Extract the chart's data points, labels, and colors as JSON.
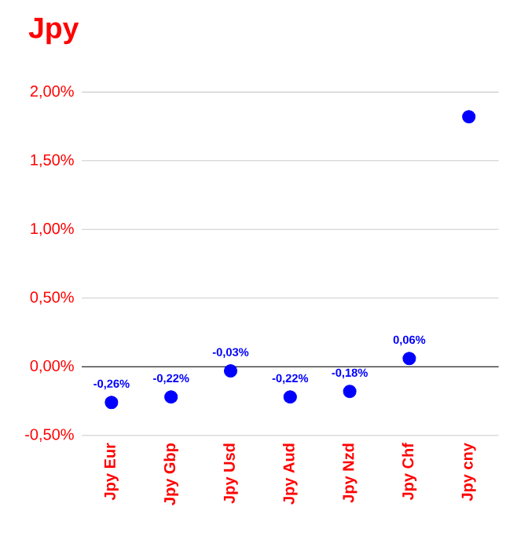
{
  "chart_data": {
    "type": "scatter",
    "title": "Jpy",
    "categories": [
      "Jpy Eur",
      "Jpy Gbp",
      "Jpy Usd",
      "Jpy Aud",
      "Jpy Nzd",
      "Jpy Chf",
      "Jpy cny"
    ],
    "values": [
      -0.26,
      -0.22,
      -0.03,
      -0.22,
      -0.18,
      0.06,
      1.82
    ],
    "value_labels": [
      "-0,26%",
      "-0,22%",
      "-0,03%",
      "-0,22%",
      "-0,18%",
      "0,06%",
      null
    ],
    "color": "#0000ff",
    "ylim": [
      -0.5,
      2.0
    ],
    "yticks": [
      {
        "value": -0.5,
        "label": "-0,50%"
      },
      {
        "value": 0,
        "label": "0,00%"
      },
      {
        "value": 0.5,
        "label": "0,50%"
      },
      {
        "value": 1.0,
        "label": "1,00%"
      },
      {
        "value": 1.5,
        "label": "1,50%"
      },
      {
        "value": 2.0,
        "label": "2,00%"
      }
    ],
    "grid": "y",
    "ref_lines": [
      {
        "axis": "y",
        "value": 0,
        "color": "#000000"
      }
    ]
  }
}
